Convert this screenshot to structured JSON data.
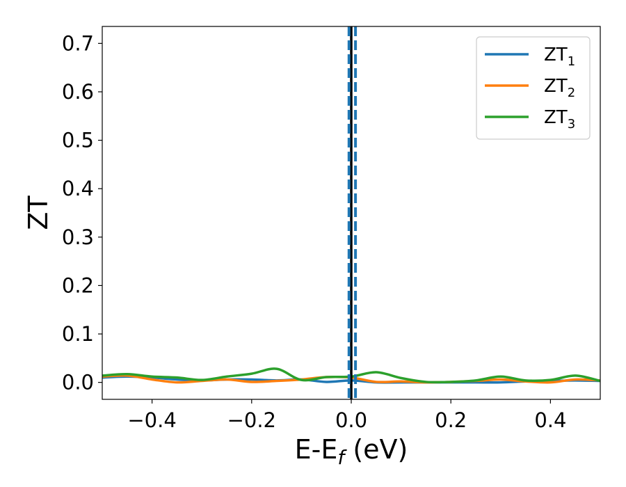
{
  "chart_data": {
    "type": "line",
    "xlabel": {
      "main": "E-E",
      "sub": "f",
      "tail": " (eV)"
    },
    "ylabel": "ZT",
    "xlim": [
      -0.5,
      0.5
    ],
    "ylim": [
      -0.035,
      0.735
    ],
    "xticks": [
      -0.4,
      -0.2,
      0.0,
      0.2,
      0.4
    ],
    "xtick_labels": [
      "−0.4",
      "−0.2",
      "0.0",
      "0.2",
      "0.4"
    ],
    "yticks": [
      0.0,
      0.1,
      0.2,
      0.3,
      0.4,
      0.5,
      0.6,
      0.7
    ],
    "ytick_labels": [
      "0.0",
      "0.1",
      "0.2",
      "0.3",
      "0.4",
      "0.5",
      "0.6",
      "0.7"
    ],
    "grid": false,
    "legend_position": "top-right",
    "vertical_lines": [
      {
        "x": 0.0,
        "style": "solid",
        "color": "#000000"
      },
      {
        "x": -0.0045,
        "style": "dashed",
        "color": "#1f77b4"
      },
      {
        "x": 0.0085,
        "style": "dashed",
        "color": "#1f77b4"
      }
    ],
    "series": [
      {
        "name": "ZT",
        "sub": "1",
        "color": "#1f77b4",
        "x": [
          -0.5,
          -0.45,
          -0.4,
          -0.35,
          -0.3,
          -0.25,
          -0.2,
          -0.15,
          -0.1,
          -0.05,
          0.0,
          0.05,
          0.1,
          0.15,
          0.2,
          0.25,
          0.3,
          0.35,
          0.4,
          0.45,
          0.5
        ],
        "y": [
          0.01,
          0.012,
          0.01,
          0.006,
          0.004,
          0.006,
          0.006,
          0.004,
          0.006,
          0.001,
          0.004,
          0.0,
          0.0,
          0.0,
          0.0,
          0.0,
          0.0,
          0.002,
          0.003,
          0.004,
          0.003
        ]
      },
      {
        "name": "ZT",
        "sub": "2",
        "color": "#ff7f0e",
        "x": [
          -0.5,
          -0.45,
          -0.4,
          -0.35,
          -0.3,
          -0.25,
          -0.2,
          -0.15,
          -0.1,
          -0.05,
          0.0,
          0.05,
          0.1,
          0.15,
          0.2,
          0.25,
          0.3,
          0.35,
          0.4,
          0.45,
          0.5
        ],
        "y": [
          0.012,
          0.014,
          0.006,
          0.0,
          0.003,
          0.006,
          0.001,
          0.003,
          0.006,
          0.011,
          0.01,
          0.001,
          0.002,
          0.0,
          0.001,
          0.003,
          0.006,
          0.002,
          0.0,
          0.006,
          0.004
        ]
      },
      {
        "name": "ZT",
        "sub": "3",
        "color": "#2ca02c",
        "x": [
          -0.5,
          -0.45,
          -0.4,
          -0.35,
          -0.3,
          -0.25,
          -0.2,
          -0.15,
          -0.1,
          -0.05,
          0.0,
          0.05,
          0.1,
          0.15,
          0.2,
          0.25,
          0.3,
          0.35,
          0.4,
          0.45,
          0.5
        ],
        "y": [
          0.014,
          0.017,
          0.012,
          0.01,
          0.005,
          0.012,
          0.018,
          0.028,
          0.005,
          0.011,
          0.012,
          0.021,
          0.009,
          0.001,
          0.001,
          0.004,
          0.012,
          0.004,
          0.005,
          0.014,
          0.003
        ]
      }
    ]
  }
}
